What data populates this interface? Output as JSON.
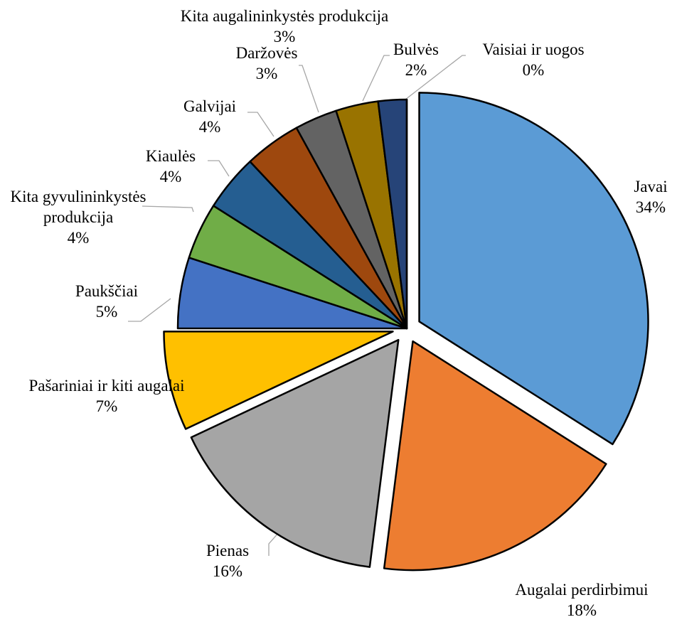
{
  "chart_data": {
    "type": "pie",
    "categories": [
      "Javai",
      "Augalai perdirbimui",
      "Pienas",
      "Pašariniai ir kiti augalai",
      "Paukščiai",
      "Kita gyvulininkystės produkcija",
      "Kiaulės",
      "Galvijai",
      "Daržovės",
      "Kita augalininkystės produkcija",
      "Bulvės",
      "Vaisiai ir uogos"
    ],
    "values": [
      34,
      18,
      16,
      7,
      5,
      4,
      4,
      4,
      3,
      3,
      2,
      0
    ],
    "value_labels": [
      "34%",
      "18%",
      "16%",
      "7%",
      "5%",
      "4%",
      "4%",
      "4%",
      "3%",
      "3%",
      "2%",
      "0%"
    ],
    "colors": [
      "#5b9bd5",
      "#ed7d31",
      "#a5a5a5",
      "#ffc000",
      "#4472c4",
      "#70ad47",
      "#255e91",
      "#9e480e",
      "#636363",
      "#997300",
      "#264478",
      "#43682b"
    ],
    "exploded": [
      true,
      true,
      true,
      true,
      false,
      false,
      false,
      false,
      false,
      false,
      false,
      false
    ]
  }
}
